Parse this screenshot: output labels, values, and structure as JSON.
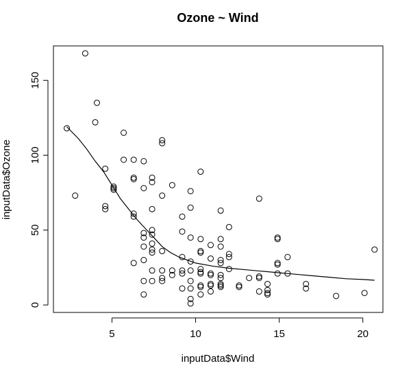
{
  "chart_data": {
    "type": "scatter",
    "title": "Ozone ~ Wind",
    "xlabel": "inputData$Wind",
    "ylabel": "inputData$Ozone",
    "xlim": [
      1.5,
      21.2
    ],
    "ylim": [
      -5,
      173
    ],
    "x_ticks": [
      5,
      10,
      15,
      20
    ],
    "y_ticks": [
      0,
      50,
      100,
      150
    ],
    "grid": false,
    "legend": "none",
    "points": [
      {
        "x": 2.3,
        "y": 118
      },
      {
        "x": 2.8,
        "y": 73
      },
      {
        "x": 3.4,
        "y": 168
      },
      {
        "x": 4.0,
        "y": 122
      },
      {
        "x": 4.1,
        "y": 135
      },
      {
        "x": 4.6,
        "y": 91
      },
      {
        "x": 4.6,
        "y": 66
      },
      {
        "x": 4.6,
        "y": 64
      },
      {
        "x": 5.1,
        "y": 79
      },
      {
        "x": 5.1,
        "y": 77
      },
      {
        "x": 5.1,
        "y": 78
      },
      {
        "x": 5.7,
        "y": 97
      },
      {
        "x": 5.7,
        "y": 115
      },
      {
        "x": 6.3,
        "y": 97
      },
      {
        "x": 6.3,
        "y": 85
      },
      {
        "x": 6.3,
        "y": 84
      },
      {
        "x": 6.3,
        "y": 61
      },
      {
        "x": 6.3,
        "y": 59
      },
      {
        "x": 6.3,
        "y": 28
      },
      {
        "x": 6.9,
        "y": 96
      },
      {
        "x": 6.9,
        "y": 78
      },
      {
        "x": 6.9,
        "y": 48
      },
      {
        "x": 6.9,
        "y": 45
      },
      {
        "x": 6.9,
        "y": 39
      },
      {
        "x": 6.9,
        "y": 30
      },
      {
        "x": 6.9,
        "y": 16
      },
      {
        "x": 6.9,
        "y": 7
      },
      {
        "x": 7.4,
        "y": 85
      },
      {
        "x": 7.4,
        "y": 82
      },
      {
        "x": 7.4,
        "y": 64
      },
      {
        "x": 7.4,
        "y": 50
      },
      {
        "x": 7.4,
        "y": 47
      },
      {
        "x": 7.4,
        "y": 41
      },
      {
        "x": 7.4,
        "y": 37
      },
      {
        "x": 7.4,
        "y": 35
      },
      {
        "x": 7.4,
        "y": 23
      },
      {
        "x": 7.4,
        "y": 16
      },
      {
        "x": 8.0,
        "y": 110
      },
      {
        "x": 8.0,
        "y": 108
      },
      {
        "x": 8.0,
        "y": 73
      },
      {
        "x": 8.0,
        "y": 36
      },
      {
        "x": 8.0,
        "y": 23
      },
      {
        "x": 8.0,
        "y": 18
      },
      {
        "x": 8.0,
        "y": 16
      },
      {
        "x": 8.6,
        "y": 80
      },
      {
        "x": 8.6,
        "y": 23
      },
      {
        "x": 8.6,
        "y": 20
      },
      {
        "x": 9.2,
        "y": 59
      },
      {
        "x": 9.2,
        "y": 49
      },
      {
        "x": 9.2,
        "y": 32
      },
      {
        "x": 9.2,
        "y": 23
      },
      {
        "x": 9.2,
        "y": 21
      },
      {
        "x": 9.2,
        "y": 11
      },
      {
        "x": 9.7,
        "y": 76
      },
      {
        "x": 9.7,
        "y": 65
      },
      {
        "x": 9.7,
        "y": 45
      },
      {
        "x": 9.7,
        "y": 29
      },
      {
        "x": 9.7,
        "y": 23
      },
      {
        "x": 9.7,
        "y": 16
      },
      {
        "x": 9.7,
        "y": 11
      },
      {
        "x": 9.7,
        "y": 4
      },
      {
        "x": 9.7,
        "y": 1
      },
      {
        "x": 10.3,
        "y": 89
      },
      {
        "x": 10.3,
        "y": 44
      },
      {
        "x": 10.3,
        "y": 36
      },
      {
        "x": 10.3,
        "y": 35
      },
      {
        "x": 10.3,
        "y": 24
      },
      {
        "x": 10.3,
        "y": 22
      },
      {
        "x": 10.3,
        "y": 21
      },
      {
        "x": 10.3,
        "y": 13
      },
      {
        "x": 10.3,
        "y": 12
      },
      {
        "x": 10.3,
        "y": 7
      },
      {
        "x": 10.9,
        "y": 40
      },
      {
        "x": 10.9,
        "y": 31
      },
      {
        "x": 10.9,
        "y": 21
      },
      {
        "x": 10.9,
        "y": 20
      },
      {
        "x": 10.9,
        "y": 14
      },
      {
        "x": 10.9,
        "y": 13
      },
      {
        "x": 10.9,
        "y": 9
      },
      {
        "x": 11.5,
        "y": 63
      },
      {
        "x": 11.5,
        "y": 44
      },
      {
        "x": 11.5,
        "y": 39
      },
      {
        "x": 11.5,
        "y": 30
      },
      {
        "x": 11.5,
        "y": 28
      },
      {
        "x": 11.5,
        "y": 20
      },
      {
        "x": 11.5,
        "y": 18
      },
      {
        "x": 11.5,
        "y": 14
      },
      {
        "x": 11.5,
        "y": 13
      },
      {
        "x": 11.5,
        "y": 12
      },
      {
        "x": 12.0,
        "y": 52
      },
      {
        "x": 12.0,
        "y": 34
      },
      {
        "x": 12.0,
        "y": 32
      },
      {
        "x": 12.0,
        "y": 24
      },
      {
        "x": 12.6,
        "y": 13
      },
      {
        "x": 12.6,
        "y": 12
      },
      {
        "x": 13.2,
        "y": 18
      },
      {
        "x": 13.8,
        "y": 71
      },
      {
        "x": 13.8,
        "y": 19
      },
      {
        "x": 13.8,
        "y": 18
      },
      {
        "x": 13.8,
        "y": 9
      },
      {
        "x": 14.3,
        "y": 14
      },
      {
        "x": 14.3,
        "y": 10
      },
      {
        "x": 14.3,
        "y": 8
      },
      {
        "x": 14.3,
        "y": 7
      },
      {
        "x": 14.9,
        "y": 45
      },
      {
        "x": 14.9,
        "y": 44
      },
      {
        "x": 14.9,
        "y": 28
      },
      {
        "x": 14.9,
        "y": 27
      },
      {
        "x": 14.9,
        "y": 21
      },
      {
        "x": 15.5,
        "y": 32
      },
      {
        "x": 15.5,
        "y": 21
      },
      {
        "x": 16.6,
        "y": 14
      },
      {
        "x": 16.6,
        "y": 11
      },
      {
        "x": 18.4,
        "y": 6
      },
      {
        "x": 20.1,
        "y": 8
      },
      {
        "x": 20.7,
        "y": 37
      }
    ],
    "smooth_line": [
      {
        "x": 2.3,
        "y": 119
      },
      {
        "x": 3.0,
        "y": 111
      },
      {
        "x": 3.5,
        "y": 104
      },
      {
        "x": 4.0,
        "y": 96
      },
      {
        "x": 4.5,
        "y": 89
      },
      {
        "x": 5.0,
        "y": 80
      },
      {
        "x": 5.5,
        "y": 71
      },
      {
        "x": 6.0,
        "y": 64
      },
      {
        "x": 6.5,
        "y": 57
      },
      {
        "x": 7.0,
        "y": 51
      },
      {
        "x": 7.5,
        "y": 45
      },
      {
        "x": 8.0,
        "y": 39
      },
      {
        "x": 8.5,
        "y": 35
      },
      {
        "x": 9.0,
        "y": 32
      },
      {
        "x": 9.5,
        "y": 30
      },
      {
        "x": 10.0,
        "y": 28
      },
      {
        "x": 11.0,
        "y": 26
      },
      {
        "x": 12.0,
        "y": 24.5
      },
      {
        "x": 13.0,
        "y": 23.5
      },
      {
        "x": 14.0,
        "y": 22.5
      },
      {
        "x": 15.0,
        "y": 21.5
      },
      {
        "x": 16.0,
        "y": 20.5
      },
      {
        "x": 17.0,
        "y": 19.5
      },
      {
        "x": 18.0,
        "y": 18.5
      },
      {
        "x": 19.0,
        "y": 17.5
      },
      {
        "x": 20.0,
        "y": 17
      },
      {
        "x": 20.7,
        "y": 16.5
      }
    ]
  }
}
